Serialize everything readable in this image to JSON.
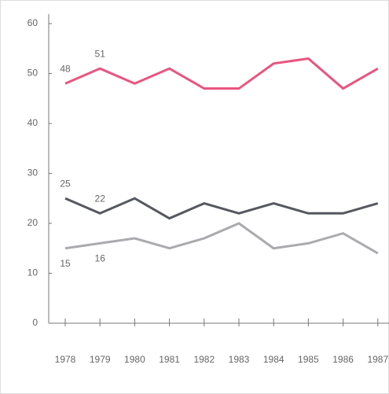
{
  "chart_data": {
    "type": "line",
    "categories": [
      "1978",
      "1979",
      "1980",
      "1981",
      "1982",
      "1983",
      "1984",
      "1985",
      "1986",
      "1987"
    ],
    "series": [
      {
        "color": "#e9557f",
        "values": [
          48,
          51,
          48,
          51,
          47,
          47,
          52,
          53,
          47,
          51
        ]
      },
      {
        "color": "#55585e",
        "values": [
          25,
          22,
          25,
          21,
          24,
          22,
          24,
          22,
          22,
          24
        ]
      },
      {
        "color": "#abaaae",
        "values": [
          15,
          16,
          17,
          15,
          17,
          20,
          15,
          16,
          18,
          14
        ]
      }
    ],
    "ylim": [
      0,
      60
    ],
    "yticks": [
      0,
      10,
      20,
      30,
      40,
      50,
      60
    ]
  }
}
